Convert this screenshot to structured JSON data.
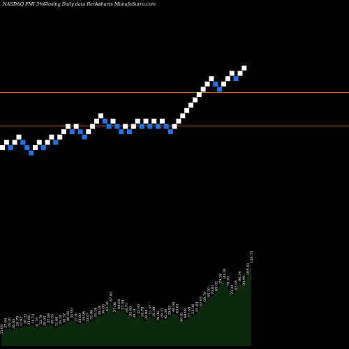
{
  "chart_data": {
    "type": "renko",
    "header": {
      "left": "NASDAQ FMI 3%~",
      "center": "Closing Daily data Renko",
      "right": "charts MunafaSutra.com"
    },
    "colors": {
      "background": "#000000",
      "up_brick": "#ffffff",
      "down_brick": "#1e73e8",
      "reference_line": "#c0661e",
      "volume_fill": "#0b2a0b"
    },
    "reference_lines": [
      0.263,
      0.36
    ],
    "bricks": [
      {
        "level": 5,
        "dir": "up"
      },
      {
        "level": 6,
        "dir": "up"
      },
      {
        "level": 5,
        "dir": "down"
      },
      {
        "level": 6,
        "dir": "up"
      },
      {
        "level": 7,
        "dir": "up"
      },
      {
        "level": 6,
        "dir": "down"
      },
      {
        "level": 5,
        "dir": "down"
      },
      {
        "level": 4,
        "dir": "down"
      },
      {
        "level": 5,
        "dir": "up"
      },
      {
        "level": 6,
        "dir": "up"
      },
      {
        "level": 5,
        "dir": "down"
      },
      {
        "level": 6,
        "dir": "up"
      },
      {
        "level": 7,
        "dir": "up"
      },
      {
        "level": 6,
        "dir": "down"
      },
      {
        "level": 7,
        "dir": "up"
      },
      {
        "level": 8,
        "dir": "up"
      },
      {
        "level": 9,
        "dir": "up"
      },
      {
        "level": 8,
        "dir": "down"
      },
      {
        "level": 9,
        "dir": "up"
      },
      {
        "level": 8,
        "dir": "down"
      },
      {
        "level": 7,
        "dir": "down"
      },
      {
        "level": 8,
        "dir": "up"
      },
      {
        "level": 9,
        "dir": "up"
      },
      {
        "level": 10,
        "dir": "up"
      },
      {
        "level": 11,
        "dir": "up"
      },
      {
        "level": 10,
        "dir": "down"
      },
      {
        "level": 9,
        "dir": "down"
      },
      {
        "level": 10,
        "dir": "up"
      },
      {
        "level": 9,
        "dir": "down"
      },
      {
        "level": 8,
        "dir": "down"
      },
      {
        "level": 9,
        "dir": "up"
      },
      {
        "level": 8,
        "dir": "down"
      },
      {
        "level": 9,
        "dir": "up"
      },
      {
        "level": 10,
        "dir": "up"
      },
      {
        "level": 9,
        "dir": "down"
      },
      {
        "level": 10,
        "dir": "up"
      },
      {
        "level": 9,
        "dir": "down"
      },
      {
        "level": 10,
        "dir": "up"
      },
      {
        "level": 9,
        "dir": "down"
      },
      {
        "level": 10,
        "dir": "up"
      },
      {
        "level": 9,
        "dir": "down"
      },
      {
        "level": 8,
        "dir": "down"
      },
      {
        "level": 9,
        "dir": "up"
      },
      {
        "level": 10,
        "dir": "up"
      },
      {
        "level": 11,
        "dir": "up"
      },
      {
        "level": 12,
        "dir": "up"
      },
      {
        "level": 13,
        "dir": "up"
      },
      {
        "level": 14,
        "dir": "up"
      },
      {
        "level": 15,
        "dir": "up"
      },
      {
        "level": 16,
        "dir": "up"
      },
      {
        "level": 17,
        "dir": "up"
      },
      {
        "level": 18,
        "dir": "up"
      },
      {
        "level": 17,
        "dir": "down"
      },
      {
        "level": 16,
        "dir": "down"
      },
      {
        "level": 17,
        "dir": "up"
      },
      {
        "level": 18,
        "dir": "up"
      },
      {
        "level": 19,
        "dir": "up"
      },
      {
        "level": 18,
        "dir": "down"
      },
      {
        "level": 19,
        "dir": "up"
      },
      {
        "level": 20,
        "dir": "up"
      }
    ],
    "volume": [
      {
        "v": 15,
        "label": "35.69"
      },
      {
        "v": 24,
        "label": "37.69"
      },
      {
        "v": 25,
        "label": "26.30"
      },
      {
        "v": 23,
        "label": "36.65"
      },
      {
        "v": 27,
        "label": "29.79"
      },
      {
        "v": 26,
        "label": "32.92"
      },
      {
        "v": 30,
        "label": "30.32"
      },
      {
        "v": 28,
        "label": "33.66"
      },
      {
        "v": 30,
        "label": "31.73"
      },
      {
        "v": 25,
        "label": "31.78"
      },
      {
        "v": 29,
        "label": "33.79"
      },
      {
        "v": 27,
        "label": "29.93"
      },
      {
        "v": 31,
        "label": "32.88"
      },
      {
        "v": 30,
        "label": "40.55"
      },
      {
        "v": 26,
        "label": "32.68"
      },
      {
        "v": 29,
        "label": "36.58"
      },
      {
        "v": 31,
        "label": "38.37"
      },
      {
        "v": 34,
        "label": "40.66"
      },
      {
        "v": 38,
        "label": "35.90"
      },
      {
        "v": 33,
        "label": "37.01"
      },
      {
        "v": 31,
        "label": "33.80"
      },
      {
        "v": 34,
        "label": "34.96"
      },
      {
        "v": 32,
        "label": "33.57"
      },
      {
        "v": 36,
        "label": "32.96"
      },
      {
        "v": 39,
        "label": "35.18"
      },
      {
        "v": 42,
        "label": "36.28"
      },
      {
        "v": 44,
        "label": "36.85"
      },
      {
        "v": 48,
        "label": "42.36"
      },
      {
        "v": 62,
        "label": "47.85"
      },
      {
        "v": 47,
        "label": "37.06"
      },
      {
        "v": 51,
        "label": "44.64"
      },
      {
        "v": 50,
        "label": "37.59"
      },
      {
        "v": 46,
        "label": "34.71"
      },
      {
        "v": 41,
        "label": "35.69"
      },
      {
        "v": 38,
        "label": "39.31"
      },
      {
        "v": 44,
        "label": "35.95"
      },
      {
        "v": 40,
        "label": "36.78"
      },
      {
        "v": 36,
        "label": "38.94"
      },
      {
        "v": 43,
        "label": "33.57"
      },
      {
        "v": 40,
        "label": "36.08"
      },
      {
        "v": 34,
        "label": "39.06"
      },
      {
        "v": 39,
        "label": "39.31"
      },
      {
        "v": 37,
        "label": "42.36"
      },
      {
        "v": 42,
        "label": "39.93"
      },
      {
        "v": 47,
        "label": "48.04"
      },
      {
        "v": 45,
        "label": "43.81"
      },
      {
        "v": 33,
        "label": "40.81"
      },
      {
        "v": 38,
        "label": "48.09"
      },
      {
        "v": 40,
        "label": "57.68"
      },
      {
        "v": 44,
        "label": "53.36"
      },
      {
        "v": 47,
        "label": "55.49"
      },
      {
        "v": 55,
        "label": "67.05"
      },
      {
        "v": 62,
        "label": "68.70"
      },
      {
        "v": 68,
        "label": "64.30"
      },
      {
        "v": 72,
        "label": "70.81"
      },
      {
        "v": 77,
        "label": "69.02"
      },
      {
        "v": 88,
        "label": "79.38"
      },
      {
        "v": 95,
        "label": "80.38"
      },
      {
        "v": 84,
        "label": "78.70"
      },
      {
        "v": 72,
        "label": "70.44"
      },
      {
        "v": 78,
        "label": "82.58"
      },
      {
        "v": 91,
        "label": "96.34"
      },
      {
        "v": 85,
        "label": "99.90"
      },
      {
        "v": 100,
        "label": "108.41"
      },
      {
        "v": 117,
        "label": "136.73"
      }
    ]
  }
}
